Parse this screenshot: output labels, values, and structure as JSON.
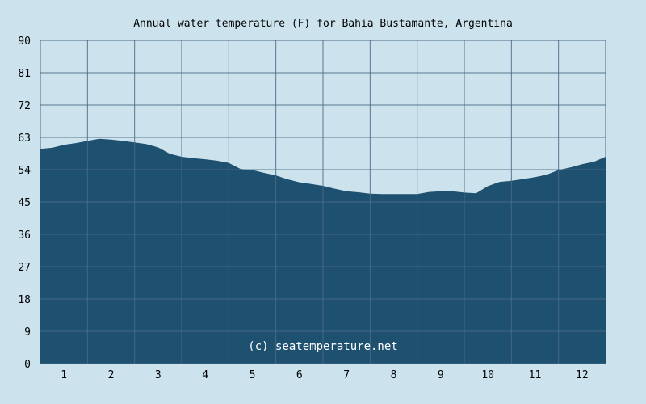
{
  "chart_data": {
    "type": "area",
    "title": "Annual water temperature (F) for Bahia Bustamante, Argentina",
    "xlabel": "",
    "ylabel": "",
    "x_ticks": [
      "1",
      "2",
      "3",
      "4",
      "5",
      "6",
      "7",
      "8",
      "9",
      "10",
      "11",
      "12"
    ],
    "y_ticks": [
      "0",
      "9",
      "18",
      "27",
      "36",
      "45",
      "54",
      "63",
      "72",
      "81",
      "90"
    ],
    "ylim": [
      0,
      90
    ],
    "xlim": [
      0.5,
      12.5
    ],
    "grid": true,
    "series": [
      {
        "x": [
          0.5,
          0.75,
          1.0,
          1.25,
          1.5,
          1.75,
          2.0,
          2.25,
          2.5,
          2.75,
          3.0,
          3.25,
          3.5,
          3.75,
          4.0,
          4.25,
          4.5,
          4.75,
          5.0,
          5.25,
          5.5,
          5.75,
          6.0,
          6.25,
          6.5,
          6.75,
          7.0,
          7.25,
          7.5,
          7.75,
          8.0,
          8.25,
          8.5,
          8.75,
          9.0,
          9.25,
          9.5,
          9.75,
          10.0,
          10.25,
          10.5,
          10.75,
          11.0,
          11.25,
          11.5,
          11.75,
          12.0,
          12.25,
          12.5
        ],
        "values": [
          59.8,
          60.1,
          60.9,
          61.4,
          62.0,
          62.6,
          62.4,
          62.0,
          61.6,
          61.1,
          60.2,
          58.4,
          57.6,
          57.2,
          56.9,
          56.5,
          55.9,
          54.2,
          53.9,
          53.1,
          52.4,
          51.3,
          50.5,
          50.0,
          49.5,
          48.7,
          48.0,
          47.7,
          47.3,
          47.2,
          47.2,
          47.2,
          47.2,
          47.8,
          48.0,
          48.0,
          47.6,
          47.4,
          49.4,
          50.6,
          50.9,
          51.4,
          51.9,
          52.6,
          53.9,
          54.6,
          55.5,
          56.2,
          57.6
        ],
        "color": "#1e5070"
      }
    ],
    "annotation": "(c) seatemperature.net",
    "colors": {
      "background": "#cce3ee",
      "area": "#1e5070",
      "grid": "#4a6c85",
      "watermark": "#ffffff"
    }
  }
}
